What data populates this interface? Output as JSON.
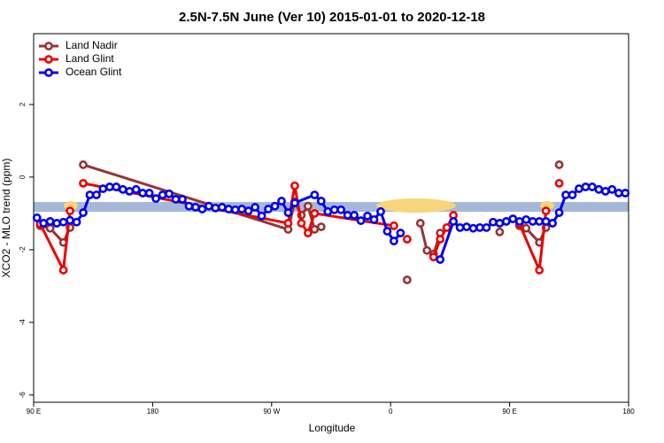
{
  "chart_data": {
    "type": "line",
    "title": "2.5N-7.5N June (Ver 10)   2015-01-01 to 2020-12-18",
    "x_label": "Longitude",
    "y_label": "XCO2 - MLO trend (ppm)",
    "xlim": [
      90,
      540
    ],
    "ylim": [
      -6.2,
      3.95
    ],
    "xticks": [
      {
        "value": 90,
        "label": "90 E"
      },
      {
        "value": 180,
        "label": "180"
      },
      {
        "value": 270,
        "label": "90 W"
      },
      {
        "value": 360,
        "label": "0"
      },
      {
        "value": 450,
        "label": "90 E"
      },
      {
        "value": 540,
        "label": "180"
      }
    ],
    "yticks": [
      -6,
      -4,
      -2,
      0,
      2
    ],
    "legend": "top-left",
    "series": [
      {
        "name": "Land Nadir",
        "color": "#993333",
        "x": [
          95,
          102.5,
          112.5,
          117.5,
          122.5,
          127.5,
          282.5,
          287.5,
          292.5,
          297.5,
          302.5,
          307.5,
          367.5,
          372.5,
          377.5,
          382.5,
          387.5,
          392.5,
          397.5,
          437.5,
          442.5,
          447.5,
          457.5,
          462.5,
          472.5,
          477.5,
          482.5,
          487.5
        ],
        "values": [
          -1.34,
          -1.41,
          -1.8,
          -1.39,
          null,
          0.34,
          -1.44,
          -0.68,
          -1.05,
          -0.8,
          -1.44,
          -1.37,
          null,
          -2.83,
          null,
          -1.27,
          -2.02,
          -2.12,
          -1.54,
          null,
          -1.51,
          null,
          -1.34,
          -1.41,
          -1.8,
          -1.39,
          null,
          0.34
        ]
      },
      {
        "name": "Land Glint",
        "color": "#ee0000",
        "x": [
          95,
          112.5,
          117.5,
          122.5,
          127.5,
          282.5,
          287.5,
          292.5,
          297.5,
          302.5,
          362.5,
          367.5,
          372.5,
          377.5,
          392.5,
          397.5,
          402.5,
          407.5,
          452.5,
          457.5,
          472.5,
          477.5,
          482.5,
          487.5
        ],
        "values": [
          -1.29,
          -2.56,
          -0.93,
          null,
          -0.17,
          -1.27,
          -0.24,
          -1.27,
          -1.54,
          -1.0,
          -1.34,
          null,
          -1.71,
          null,
          -2.2,
          -1.71,
          -1.39,
          -1.05,
          null,
          -1.29,
          -2.56,
          -0.93,
          null,
          -0.17
        ]
      },
      {
        "name": "Ocean Glint",
        "color": "#0000ee",
        "x": [
          92.5,
          97.5,
          102.5,
          107.5,
          112.5,
          117.5,
          122.5,
          127.5,
          132.5,
          137.5,
          142.5,
          147.5,
          152.5,
          157.5,
          162.5,
          167.5,
          172.5,
          177.5,
          182.5,
          187.5,
          192.5,
          197.5,
          202.5,
          207.5,
          212.5,
          217.5,
          222.5,
          227.5,
          232.5,
          237.5,
          242.5,
          247.5,
          252.5,
          257.5,
          262.5,
          267.5,
          272.5,
          277.5,
          282.5,
          287.5,
          302.5,
          307.5,
          312.5,
          317.5,
          322.5,
          327.5,
          332.5,
          337.5,
          342.5,
          347.5,
          352.5,
          357.5,
          362.5,
          367.5,
          372.5,
          397.5,
          407.5,
          412.5,
          417.5,
          422.5,
          427.5,
          432.5,
          437.5,
          442.5,
          447.5,
          452.5,
          457.5,
          462.5,
          467.5,
          472.5,
          477.5,
          482.5,
          487.5,
          492.5,
          497.5,
          502.5,
          507.5,
          512.5,
          517.5,
          522.5,
          527.5,
          532.5,
          537.5
        ],
        "values": [
          -1.12,
          -1.27,
          -1.22,
          -1.27,
          -1.24,
          -1.19,
          -1.24,
          -0.98,
          -0.49,
          -0.49,
          -0.32,
          -0.27,
          -0.27,
          -0.34,
          -0.39,
          -0.34,
          -0.44,
          -0.44,
          -0.59,
          -0.49,
          -0.46,
          -0.61,
          -0.61,
          -0.8,
          -0.83,
          -0.88,
          -0.8,
          -0.85,
          -0.83,
          -0.88,
          -0.9,
          -0.88,
          -0.93,
          -0.83,
          -1.07,
          -0.88,
          -0.8,
          -0.66,
          -0.98,
          -0.71,
          -0.49,
          -0.66,
          -0.95,
          -0.9,
          -0.9,
          -1.05,
          -1.05,
          -1.2,
          -1.07,
          -1.17,
          -0.95,
          -1.49,
          -1.76,
          -1.54,
          null,
          -2.27,
          -1.22,
          -1.39,
          -1.37,
          -1.41,
          -1.39,
          -1.39,
          -1.24,
          -1.27,
          -1.22,
          -1.15,
          -1.22,
          -1.17,
          -1.22,
          -1.22,
          -1.22,
          -1.27,
          -0.98,
          -0.49,
          -0.49,
          -0.32,
          -0.27,
          -0.27,
          -0.34,
          -0.39,
          -0.34,
          -0.44,
          -0.44
        ]
      }
    ]
  }
}
